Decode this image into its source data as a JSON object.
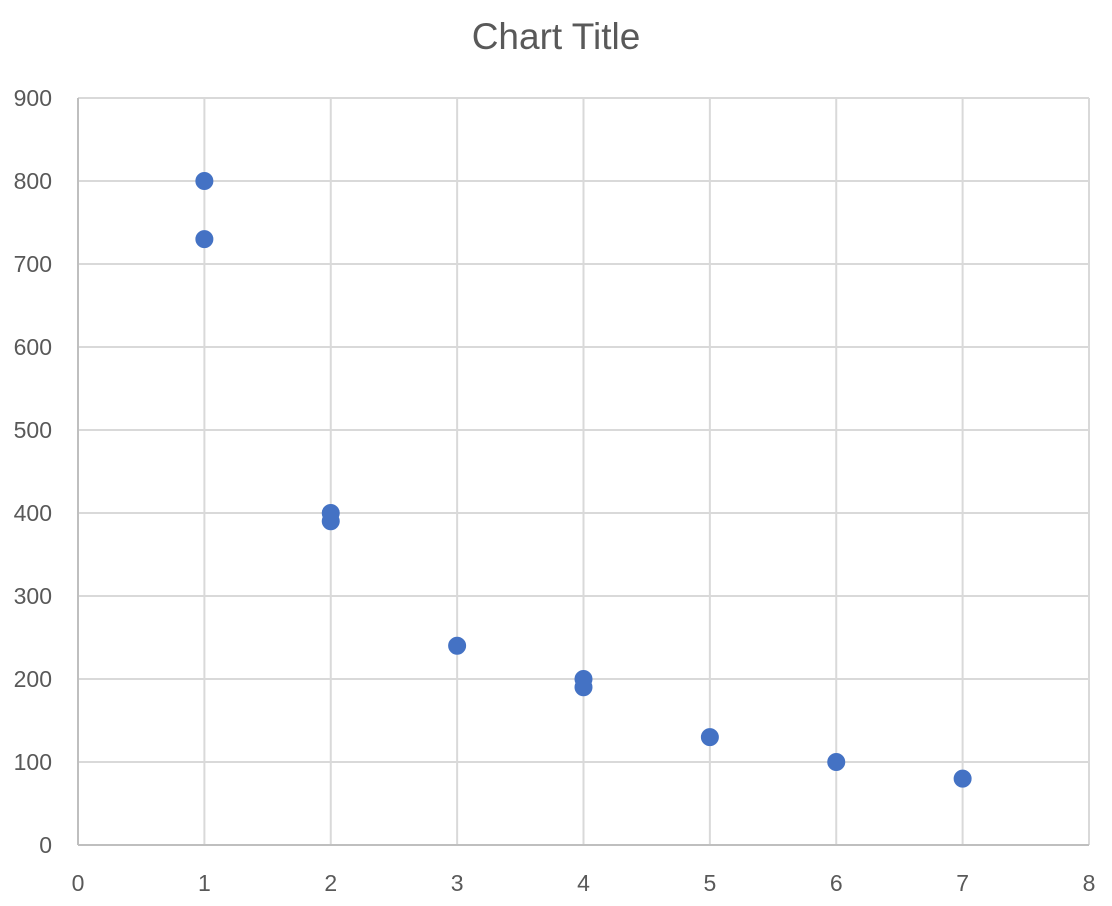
{
  "chart_data": {
    "type": "scatter",
    "title": "Chart Title",
    "xlabel": "",
    "ylabel": "",
    "xlim": [
      0,
      8
    ],
    "ylim": [
      0,
      900
    ],
    "x_ticks": [
      0,
      1,
      2,
      3,
      4,
      5,
      6,
      7,
      8
    ],
    "y_ticks": [
      0,
      100,
      200,
      300,
      400,
      500,
      600,
      700,
      800,
      900
    ],
    "grid": true,
    "legend": "none",
    "series": [
      {
        "points": [
          {
            "x": 1,
            "y": 800
          },
          {
            "x": 1,
            "y": 730
          },
          {
            "x": 2,
            "y": 400
          },
          {
            "x": 2,
            "y": 390
          },
          {
            "x": 3,
            "y": 240
          },
          {
            "x": 4,
            "y": 200
          },
          {
            "x": 4,
            "y": 190
          },
          {
            "x": 5,
            "y": 130
          },
          {
            "x": 6,
            "y": 100
          },
          {
            "x": 7,
            "y": 80
          }
        ],
        "color": "#4472C4"
      }
    ],
    "colors": {
      "gridline": "#d9d9d9",
      "axis": "#bfbfbf",
      "text": "#595959",
      "background": "#ffffff"
    }
  }
}
